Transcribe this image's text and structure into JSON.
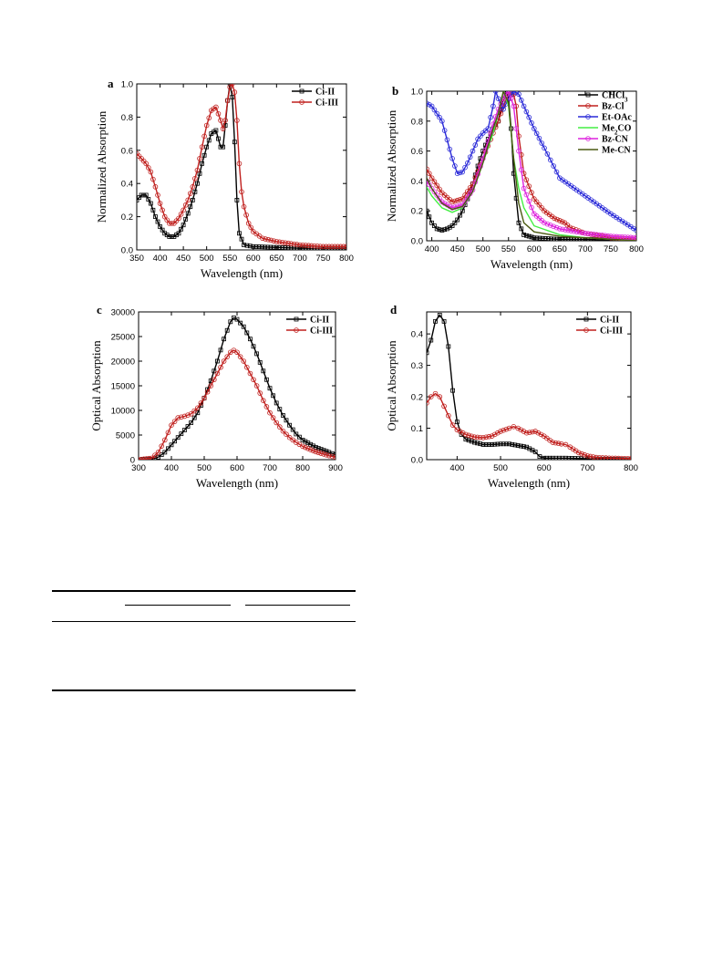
{
  "figure": {
    "panels": [
      {
        "letter": "a",
        "xlabel": "Wavelength (nm)",
        "ylabel": "Normalized Absorption"
      },
      {
        "letter": "b",
        "xlabel": "Wavelength (nm)",
        "ylabel": "Normalized Absorption"
      },
      {
        "letter": "c",
        "xlabel": "Wavelength (nm)",
        "ylabel": "Optical Absorption"
      },
      {
        "letter": "d",
        "xlabel": "Wavelength (nm)",
        "ylabel": "Optical Absorption"
      }
    ]
  },
  "colors": {
    "Ci-II": "#000000",
    "Ci-III": "#c0201e",
    "CHCl3": "#000000",
    "Bz-Cl": "#c0201e",
    "Et-OAc": "#2a2ad8",
    "Me2CO": "#44ee44",
    "Bz-CN": "#dd22dd",
    "Me-CN": "#4b5a12"
  },
  "chart_data": [
    {
      "type": "line",
      "xlabel": "Wavelength (nm)",
      "ylabel": "Normalized Absorption",
      "xlim": [
        350,
        800
      ],
      "ylim": [
        0.0,
        1.0
      ],
      "xticks": [
        350,
        400,
        450,
        500,
        550,
        600,
        650,
        700,
        750,
        800
      ],
      "yticks": [
        0.0,
        0.2,
        0.4,
        0.6,
        0.8,
        1.0
      ],
      "ytick_labels": [
        "0.0",
        "0.2",
        "0.4",
        "0.6",
        "0.8",
        "1.0"
      ],
      "legend_position": "top-right",
      "grid": false,
      "series": [
        {
          "name": "Ci-II",
          "marker": "square",
          "x": [
            350,
            360,
            370,
            380,
            390,
            400,
            410,
            420,
            430,
            440,
            450,
            460,
            470,
            480,
            490,
            500,
            510,
            520,
            530,
            535,
            540,
            545,
            550,
            555,
            560,
            565,
            570,
            580,
            600,
            650,
            700,
            750,
            800
          ],
          "y": [
            0.3,
            0.33,
            0.33,
            0.28,
            0.2,
            0.14,
            0.1,
            0.08,
            0.08,
            0.1,
            0.15,
            0.22,
            0.3,
            0.4,
            0.52,
            0.62,
            0.7,
            0.72,
            0.62,
            0.62,
            0.75,
            0.9,
            1.0,
            0.92,
            0.65,
            0.3,
            0.1,
            0.03,
            0.02,
            0.015,
            0.01,
            0.01,
            0.01
          ]
        },
        {
          "name": "Ci-III",
          "marker": "circle",
          "x": [
            350,
            360,
            370,
            380,
            390,
            400,
            410,
            420,
            430,
            440,
            450,
            460,
            470,
            480,
            490,
            500,
            510,
            520,
            530,
            535,
            540,
            545,
            550,
            555,
            560,
            565,
            570,
            575,
            580,
            590,
            600,
            620,
            650,
            700,
            750,
            800
          ],
          "y": [
            0.58,
            0.55,
            0.52,
            0.47,
            0.38,
            0.28,
            0.2,
            0.16,
            0.16,
            0.19,
            0.24,
            0.3,
            0.38,
            0.48,
            0.62,
            0.75,
            0.84,
            0.86,
            0.78,
            0.73,
            0.78,
            0.9,
            0.98,
            1.0,
            0.95,
            0.78,
            0.52,
            0.35,
            0.26,
            0.16,
            0.11,
            0.07,
            0.05,
            0.03,
            0.02,
            0.02
          ]
        }
      ]
    },
    {
      "type": "line",
      "xlabel": "Wavelength (nm)",
      "ylabel": "Normalized Absorption",
      "xlim": [
        390,
        800
      ],
      "ylim": [
        0.0,
        1.0
      ],
      "xticks": [
        400,
        450,
        500,
        550,
        600,
        650,
        700,
        750,
        800
      ],
      "yticks": [
        0.0,
        0.2,
        0.4,
        0.6,
        0.8,
        1.0
      ],
      "ytick_labels": [
        "0.0",
        "0.2",
        "0.4",
        "0.6",
        "0.8",
        "1.0"
      ],
      "legend_position": "top-right",
      "grid": false,
      "series": [
        {
          "name": "CHCl3",
          "marker": "square",
          "x": [
            390,
            400,
            410,
            420,
            430,
            440,
            450,
            460,
            470,
            480,
            490,
            500,
            510,
            520,
            530,
            540,
            545,
            550,
            555,
            560,
            570,
            580,
            600,
            650,
            700,
            800
          ],
          "y": [
            0.2,
            0.12,
            0.08,
            0.07,
            0.08,
            0.1,
            0.14,
            0.2,
            0.28,
            0.38,
            0.5,
            0.6,
            0.68,
            0.75,
            0.8,
            0.95,
            1.0,
            0.95,
            0.75,
            0.45,
            0.12,
            0.04,
            0.02,
            0.01,
            0.01,
            0.0
          ]
        },
        {
          "name": "Bz-Cl",
          "marker": "circle",
          "x": [
            390,
            400,
            420,
            440,
            460,
            480,
            500,
            520,
            530,
            540,
            550,
            560,
            565,
            570,
            580,
            600,
            620,
            640,
            660,
            670,
            700,
            750,
            800
          ],
          "y": [
            0.48,
            0.42,
            0.32,
            0.26,
            0.28,
            0.38,
            0.55,
            0.72,
            0.8,
            0.9,
            0.98,
            0.98,
            0.9,
            0.7,
            0.45,
            0.28,
            0.2,
            0.15,
            0.12,
            0.09,
            0.05,
            0.02,
            0.01
          ]
        },
        {
          "name": "Et-OAc",
          "marker": "circle",
          "x": [
            390,
            400,
            420,
            440,
            450,
            460,
            470,
            480,
            490,
            500,
            510,
            520,
            525,
            530,
            540,
            550,
            560,
            570,
            580,
            600,
            620,
            650,
            700,
            750,
            800
          ],
          "y": [
            0.92,
            0.9,
            0.8,
            0.55,
            0.45,
            0.46,
            0.52,
            0.6,
            0.68,
            0.72,
            0.75,
            0.9,
            1.0,
            0.95,
            0.88,
            0.95,
            1.0,
            0.98,
            0.9,
            0.75,
            0.62,
            0.42,
            0.3,
            0.18,
            0.07
          ]
        },
        {
          "name": "Me2CO",
          "marker": "none",
          "x": [
            390,
            400,
            420,
            440,
            460,
            480,
            500,
            520,
            530,
            540,
            550,
            560,
            570,
            580,
            600,
            650,
            700,
            800
          ],
          "y": [
            0.36,
            0.3,
            0.22,
            0.19,
            0.22,
            0.33,
            0.52,
            0.72,
            0.85,
            1.0,
            0.9,
            0.55,
            0.35,
            0.22,
            0.1,
            0.04,
            0.02,
            0.0
          ]
        },
        {
          "name": "Bz-CN",
          "marker": "circle",
          "x": [
            390,
            400,
            420,
            440,
            460,
            480,
            500,
            520,
            530,
            540,
            550,
            560,
            570,
            580,
            600,
            620,
            650,
            700,
            750,
            800
          ],
          "y": [
            0.4,
            0.35,
            0.26,
            0.22,
            0.24,
            0.34,
            0.55,
            0.78,
            0.88,
            0.95,
            1.0,
            0.9,
            0.6,
            0.35,
            0.18,
            0.12,
            0.08,
            0.05,
            0.03,
            0.02
          ]
        },
        {
          "name": "Me-CN",
          "marker": "none",
          "x": [
            390,
            400,
            420,
            440,
            460,
            480,
            500,
            520,
            530,
            540,
            550,
            560,
            570,
            580,
            600,
            650,
            700,
            800
          ],
          "y": [
            0.42,
            0.35,
            0.25,
            0.21,
            0.23,
            0.33,
            0.52,
            0.75,
            0.85,
            1.0,
            0.92,
            0.55,
            0.25,
            0.12,
            0.06,
            0.03,
            0.02,
            0.0
          ]
        }
      ]
    },
    {
      "type": "line",
      "xlabel": "Wavelength (nm)",
      "ylabel": "Optical Absorption",
      "xlim": [
        300,
        900
      ],
      "ylim": [
        0,
        30000
      ],
      "xticks": [
        300,
        400,
        500,
        600,
        700,
        800,
        900
      ],
      "yticks": [
        0,
        5000,
        10000,
        15000,
        20000,
        25000,
        30000
      ],
      "ytick_labels": [
        "0",
        "5000",
        "10000",
        "15000",
        "20000",
        "25000",
        "30000"
      ],
      "legend_position": "top-right",
      "grid": false,
      "series": [
        {
          "name": "Ci-II",
          "marker": "square",
          "x": [
            300,
            340,
            360,
            380,
            400,
            420,
            440,
            460,
            480,
            500,
            520,
            540,
            560,
            580,
            590,
            600,
            620,
            640,
            660,
            680,
            700,
            720,
            740,
            760,
            780,
            800,
            840,
            880,
            900
          ],
          "y": [
            0,
            100,
            500,
            1500,
            3000,
            4500,
            6000,
            7500,
            9500,
            12500,
            16000,
            20000,
            24500,
            28000,
            28800,
            28500,
            27000,
            24500,
            21500,
            18000,
            14500,
            11500,
            9000,
            7000,
            5200,
            4000,
            2500,
            1500,
            1000
          ]
        },
        {
          "name": "Ci-III",
          "marker": "circle",
          "x": [
            300,
            340,
            360,
            380,
            400,
            420,
            440,
            460,
            480,
            500,
            520,
            540,
            560,
            580,
            590,
            600,
            620,
            640,
            660,
            680,
            700,
            720,
            740,
            760,
            780,
            800,
            840,
            880,
            900
          ],
          "y": [
            0,
            300,
            1500,
            4000,
            7000,
            8500,
            8800,
            9300,
            10500,
            12500,
            15000,
            17500,
            20000,
            21800,
            22200,
            21800,
            20000,
            17500,
            15000,
            12000,
            9500,
            7500,
            5800,
            4500,
            3500,
            2700,
            1600,
            800,
            500
          ]
        }
      ]
    },
    {
      "type": "line",
      "xlabel": "Wavelength (nm)",
      "ylabel": "Optical Absorption",
      "xlim": [
        330,
        800
      ],
      "ylim": [
        0.0,
        0.47
      ],
      "xticks": [
        400,
        500,
        600,
        700,
        800
      ],
      "yticks": [
        0.0,
        0.1,
        0.2,
        0.3,
        0.4
      ],
      "ytick_labels": [
        "0.0",
        "0.1",
        "0.2",
        "0.3",
        "0.4"
      ],
      "legend_position": "top-right",
      "grid": false,
      "series": [
        {
          "name": "Ci-II",
          "marker": "square",
          "x": [
            330,
            340,
            350,
            360,
            370,
            380,
            390,
            400,
            410,
            420,
            440,
            460,
            480,
            500,
            520,
            540,
            560,
            580,
            590,
            600,
            620,
            650,
            700,
            750,
            800
          ],
          "y": [
            0.34,
            0.38,
            0.44,
            0.46,
            0.44,
            0.36,
            0.22,
            0.12,
            0.08,
            0.065,
            0.055,
            0.048,
            0.048,
            0.05,
            0.05,
            0.045,
            0.04,
            0.025,
            0.01,
            0.005,
            0.005,
            0.005,
            0.003,
            0.002,
            0.0
          ]
        },
        {
          "name": "Ci-III",
          "marker": "circle",
          "x": [
            330,
            340,
            350,
            360,
            370,
            380,
            390,
            400,
            420,
            440,
            460,
            480,
            500,
            520,
            530,
            540,
            560,
            580,
            600,
            620,
            640,
            650,
            660,
            680,
            700,
            720,
            750,
            800
          ],
          "y": [
            0.18,
            0.2,
            0.21,
            0.2,
            0.17,
            0.14,
            0.11,
            0.095,
            0.08,
            0.072,
            0.07,
            0.075,
            0.09,
            0.1,
            0.105,
            0.1,
            0.085,
            0.09,
            0.075,
            0.055,
            0.05,
            0.048,
            0.04,
            0.022,
            0.012,
            0.007,
            0.005,
            0.003
          ]
        }
      ]
    }
  ]
}
